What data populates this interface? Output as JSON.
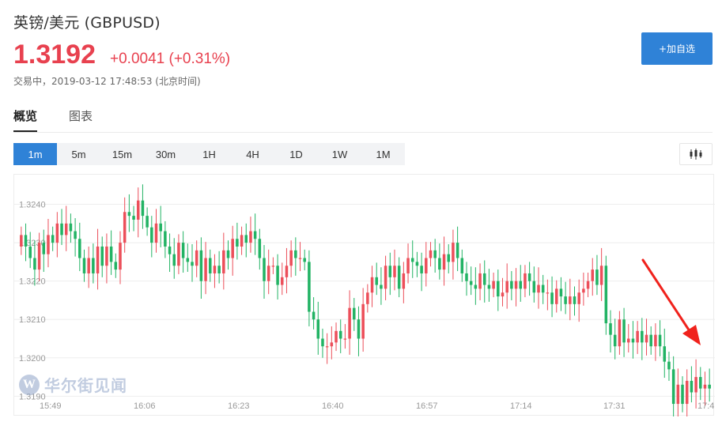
{
  "header": {
    "title": "英镑/美元  (GBPUSD)",
    "price": "1.3192",
    "change": "+0.0041 (+0.31%)",
    "status": "交易中，2019-03-12 17:48:53 (北京时间)"
  },
  "actions": {
    "add_watchlist": "+加自选"
  },
  "tabs": [
    {
      "label": "概览",
      "active": true
    },
    {
      "label": "图表",
      "active": false
    }
  ],
  "periods": [
    {
      "label": "1m",
      "active": true
    },
    {
      "label": "5m",
      "active": false
    },
    {
      "label": "15m",
      "active": false
    },
    {
      "label": "30m",
      "active": false
    },
    {
      "label": "1H",
      "active": false
    },
    {
      "label": "4H",
      "active": false
    },
    {
      "label": "1D",
      "active": false
    },
    {
      "label": "1W",
      "active": false
    },
    {
      "label": "1M",
      "active": false
    }
  ],
  "chart_type_icon": "candlestick-icon",
  "watermark": {
    "logo_letter": "W",
    "text": "华尔街见闻"
  },
  "colors": {
    "up": "#ec4f5a",
    "down": "#22b364",
    "accent": "#2f82d7",
    "annotation": "#f0221c"
  },
  "chart_data": {
    "type": "candlestick",
    "y_ticks": [
      "1.3240",
      "1.3230",
      "1.3220",
      "1.3210",
      "1.3200",
      "1.3190"
    ],
    "y_tick_values": [
      1.324,
      1.323,
      1.322,
      1.321,
      1.32,
      1.319
    ],
    "x_ticks": [
      "15:49",
      "16:06",
      "16:23",
      "16:40",
      "16:57",
      "17:14",
      "17:31",
      "17:4"
    ],
    "ylim": [
      1.31876,
      1.32465
    ],
    "grid": true,
    "annotation": "red arrow pointing down-right toward latest candles",
    "closes": [
      1.3232,
      1.3229,
      1.3226,
      1.3223,
      1.323,
      1.3227,
      1.3232,
      1.323,
      1.3235,
      1.3232,
      1.3235,
      1.3233,
      1.3231,
      1.3226,
      1.3222,
      1.3226,
      1.3222,
      1.3229,
      1.3224,
      1.3229,
      1.3225,
      1.3223,
      1.323,
      1.3238,
      1.3237,
      1.3236,
      1.3241,
      1.3237,
      1.3234,
      1.323,
      1.3235,
      1.3233,
      1.3229,
      1.3227,
      1.3224,
      1.323,
      1.3226,
      1.3225,
      1.3224,
      1.3228,
      1.322,
      1.3226,
      1.3222,
      1.3224,
      1.3222,
      1.3228,
      1.3226,
      1.3231,
      1.3229,
      1.3232,
      1.323,
      1.3233,
      1.3231,
      1.3226,
      1.322,
      1.3224,
      1.3224,
      1.3219,
      1.3221,
      1.3224,
      1.3228,
      1.3226,
      1.3226,
      1.3225,
      1.3212,
      1.321,
      1.3205,
      1.3203,
      1.3203,
      1.3204,
      1.3207,
      1.3205,
      1.3205,
      1.3213,
      1.321,
      1.3205,
      1.3214,
      1.3217,
      1.3221,
      1.3219,
      1.3218,
      1.3224,
      1.3221,
      1.3224,
      1.3218,
      1.3222,
      1.3226,
      1.3225,
      1.3224,
      1.3222,
      1.3226,
      1.3228,
      1.3226,
      1.3223,
      1.3227,
      1.3225,
      1.323,
      1.3226,
      1.3222,
      1.322,
      1.3219,
      1.3218,
      1.3222,
      1.3219,
      1.3218,
      1.322,
      1.3216,
      1.3217,
      1.322,
      1.3218,
      1.322,
      1.3218,
      1.3222,
      1.322,
      1.3217,
      1.3219,
      1.3217,
      1.3217,
      1.3214,
      1.3218,
      1.3216,
      1.3214,
      1.3216,
      1.3214,
      1.3217,
      1.3218,
      1.322,
      1.3223,
      1.3219,
      1.3224,
      1.3209,
      1.3206,
      1.3203,
      1.321,
      1.3204,
      1.3205,
      1.3204,
      1.3207,
      1.3204,
      1.3206,
      1.3203,
      1.3206,
      1.3203,
      1.3199,
      1.3197,
      1.3188,
      1.3193,
      1.3188,
      1.3194,
      1.3191,
      1.3195,
      1.3192,
      1.3193,
      1.3192
    ]
  }
}
